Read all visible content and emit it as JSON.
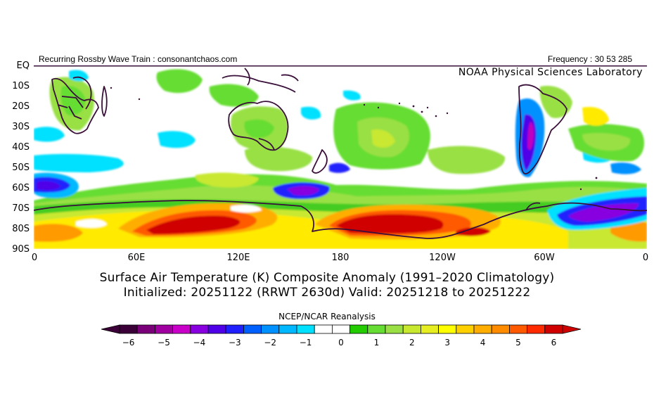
{
  "header": {
    "left": "Recurring Rossby Wave Train : consonantchaos.com",
    "right": "Frequency : 30 53 285"
  },
  "map": {
    "lab_name": "NOAA Physical Sciences Laboratory",
    "lat_labels": [
      "EQ",
      "10S",
      "20S",
      "30S",
      "40S",
      "50S",
      "60S",
      "70S",
      "80S",
      "90S"
    ],
    "lon_labels": [
      "0",
      "60E",
      "120E",
      "180",
      "120W",
      "60W",
      "0"
    ],
    "colors": {
      "cyan": "#00e0ff",
      "light_green": "#88e066",
      "green": "#44cc22",
      "yellow_green": "#c8e830",
      "yellow": "#ffea00",
      "orange": "#ff9a00",
      "red_orange": "#ff4a00",
      "red": "#d80000",
      "blue": "#2050ff",
      "purple": "#8020e0",
      "magenta": "#c000c0",
      "coast": "#3a103a"
    }
  },
  "title": {
    "line1": "Surface Air Temperature (K) Composite Anomaly (1991–2020 Climatology)",
    "line2": "Initialized: 20251122 (RRWT 2630d) Valid: 20251218 to 20251222"
  },
  "colorbar": {
    "title": "NCEP/NCAR Reanalysis",
    "ticks": [
      "−6",
      "−5",
      "−4",
      "−3",
      "−2",
      "−1",
      "0",
      "1",
      "2",
      "3",
      "4",
      "5",
      "6"
    ],
    "colors": [
      "#3c0038",
      "#7a007a",
      "#a000a0",
      "#c800c8",
      "#8800e0",
      "#5000e8",
      "#2020ff",
      "#0060ff",
      "#0090ff",
      "#00b8ff",
      "#00e0ff",
      "#ffffff",
      "#ffffff",
      "#22cc00",
      "#66dd33",
      "#99e044",
      "#c8e830",
      "#e6ee22",
      "#ffff00",
      "#ffd000",
      "#ffae00",
      "#ff8c00",
      "#ff5a00",
      "#ff2a00",
      "#d00000"
    ]
  }
}
